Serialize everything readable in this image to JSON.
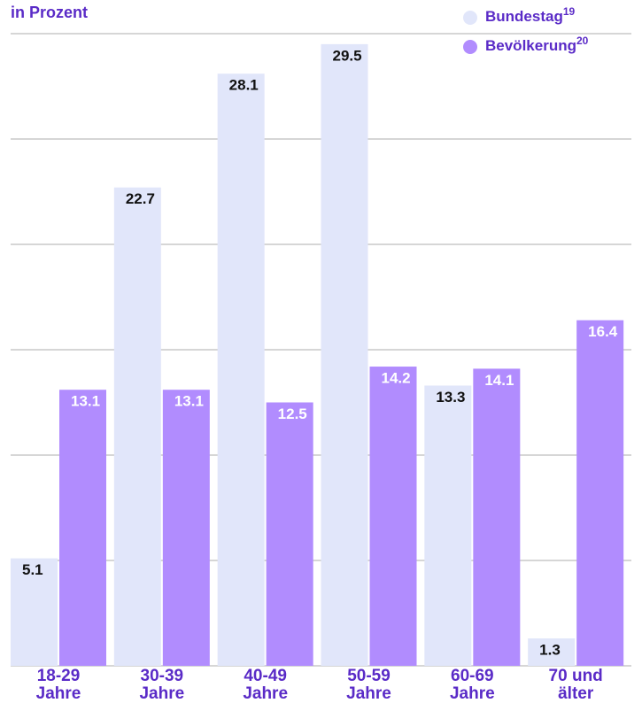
{
  "chart_data": {
    "type": "bar",
    "subtitle": "in Prozent",
    "categories": [
      "18-29\nJahre",
      "30-39\nJahre",
      "40-49\nJahre",
      "50-59\nJahre",
      "60-69\nJahre",
      "70 und\nälter"
    ],
    "series": [
      {
        "name": "Bundestag",
        "note": "19",
        "color": "#e1e6fa",
        "label_color": "#111111",
        "values": [
          5.1,
          22.7,
          28.1,
          29.5,
          13.3,
          1.3
        ]
      },
      {
        "name": "Bevölkerung",
        "note": "20",
        "color": "#b18cfe",
        "label_color": "#ffffff",
        "values": [
          13.1,
          13.1,
          12.5,
          14.2,
          14.1,
          16.4
        ]
      }
    ],
    "ylim": [
      0,
      30
    ],
    "yticks": [
      0,
      5,
      10,
      15,
      20,
      25,
      30
    ],
    "grid": true,
    "legend": "top-right"
  }
}
